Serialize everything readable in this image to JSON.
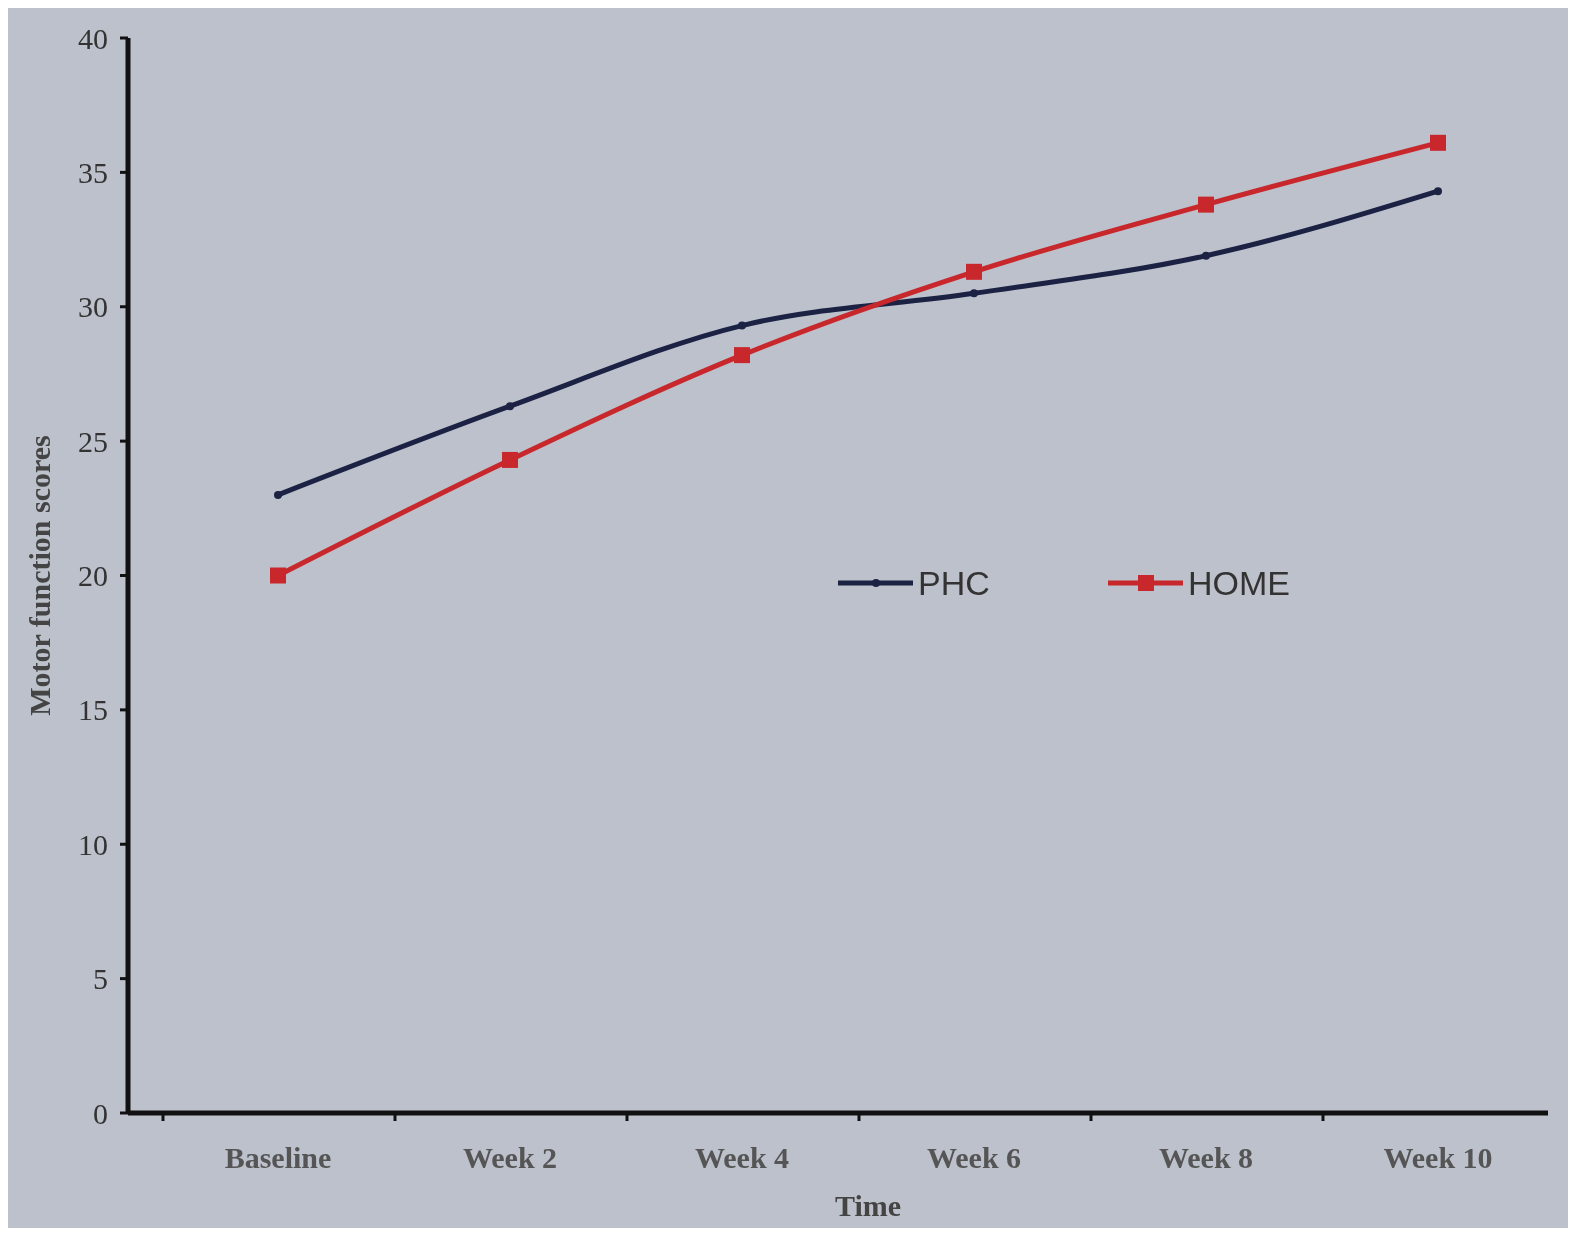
{
  "chart_data": {
    "type": "line",
    "xlabel": "Time",
    "ylabel": "Motor function scores",
    "categories": [
      "Baseline",
      "Week 2",
      "Week 4",
      "Week 6",
      "Week 8",
      "Week 10"
    ],
    "series": [
      {
        "name": "PHC",
        "color": "#1c2244",
        "marker": "circle",
        "values": [
          23.0,
          26.3,
          29.3,
          30.5,
          31.9,
          34.3
        ]
      },
      {
        "name": "HOME",
        "color": "#c8282c",
        "marker": "square",
        "values": [
          20.0,
          24.3,
          28.2,
          31.3,
          33.8,
          36.1
        ]
      }
    ],
    "ylim": [
      0,
      40
    ],
    "yticks": [
      0,
      5,
      10,
      15,
      20,
      25,
      30,
      35,
      40
    ],
    "grid": false,
    "legend": "right",
    "line_style": "solid"
  }
}
